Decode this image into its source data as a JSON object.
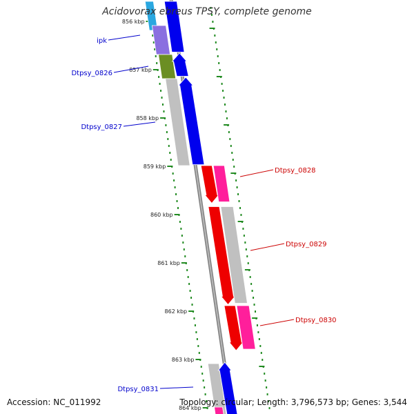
{
  "title": "Acidovorax ebreus TPSY, complete genome",
  "footer": {
    "accession": "Accession: NC_011992",
    "stats": "Topology: circular; Length: 3,796,573 bp; Genes: 3,544"
  },
  "colors": {
    "backbone": "#9a9a9a",
    "tick": "#228b22",
    "blue_label": "#0000cc",
    "red_label": "#cc0000",
    "gene_blue": "#0000ee",
    "gene_red": "#ee0000",
    "gene_pink": "#ff1f9b",
    "gene_gray": "#c0c0c0",
    "gene_olive": "#6b8e23",
    "gene_purple": "#8a6fe0",
    "gene_cyan": "#2aa7e0"
  },
  "scale": {
    "unit": "kbp",
    "ticks": [
      856,
      857,
      858,
      859,
      860,
      861,
      862,
      863,
      864
    ],
    "tick_labels": [
      "856 kbp",
      "857 kbp",
      "858 kbp",
      "859 kbp",
      "860 kbp",
      "861 kbp",
      "862 kbp",
      "863 kbp",
      "864 kbp"
    ]
  },
  "genes": [
    {
      "label": "ipk",
      "start_kbp": 856.2,
      "end_kbp": 856.7,
      "strand": "-",
      "color": "gene_blue"
    },
    {
      "label": "Dtpsy_0826",
      "start_kbp": 856.75,
      "end_kbp": 857.15,
      "strand": "-",
      "color": "gene_blue"
    },
    {
      "label": "Dtpsy_0827",
      "start_kbp": 857.2,
      "end_kbp": 859.0,
      "strand": "-",
      "color": "gene_blue"
    },
    {
      "label": "Dtpsy_0828",
      "start_kbp": 859.0,
      "end_kbp": 859.8,
      "strand": "+",
      "color": "gene_red"
    },
    {
      "label": "Dtpsy_0829",
      "start_kbp": 859.85,
      "end_kbp": 861.85,
      "strand": "+",
      "color": "gene_red"
    },
    {
      "label": "Dtpsy_0830",
      "start_kbp": 861.9,
      "end_kbp": 862.8,
      "strand": "+",
      "color": "gene_red"
    },
    {
      "label": "Dtpsy_0831",
      "start_kbp": 863.1,
      "end_kbp": 864.0,
      "strand": "-",
      "color": "gene_blue"
    }
  ]
}
